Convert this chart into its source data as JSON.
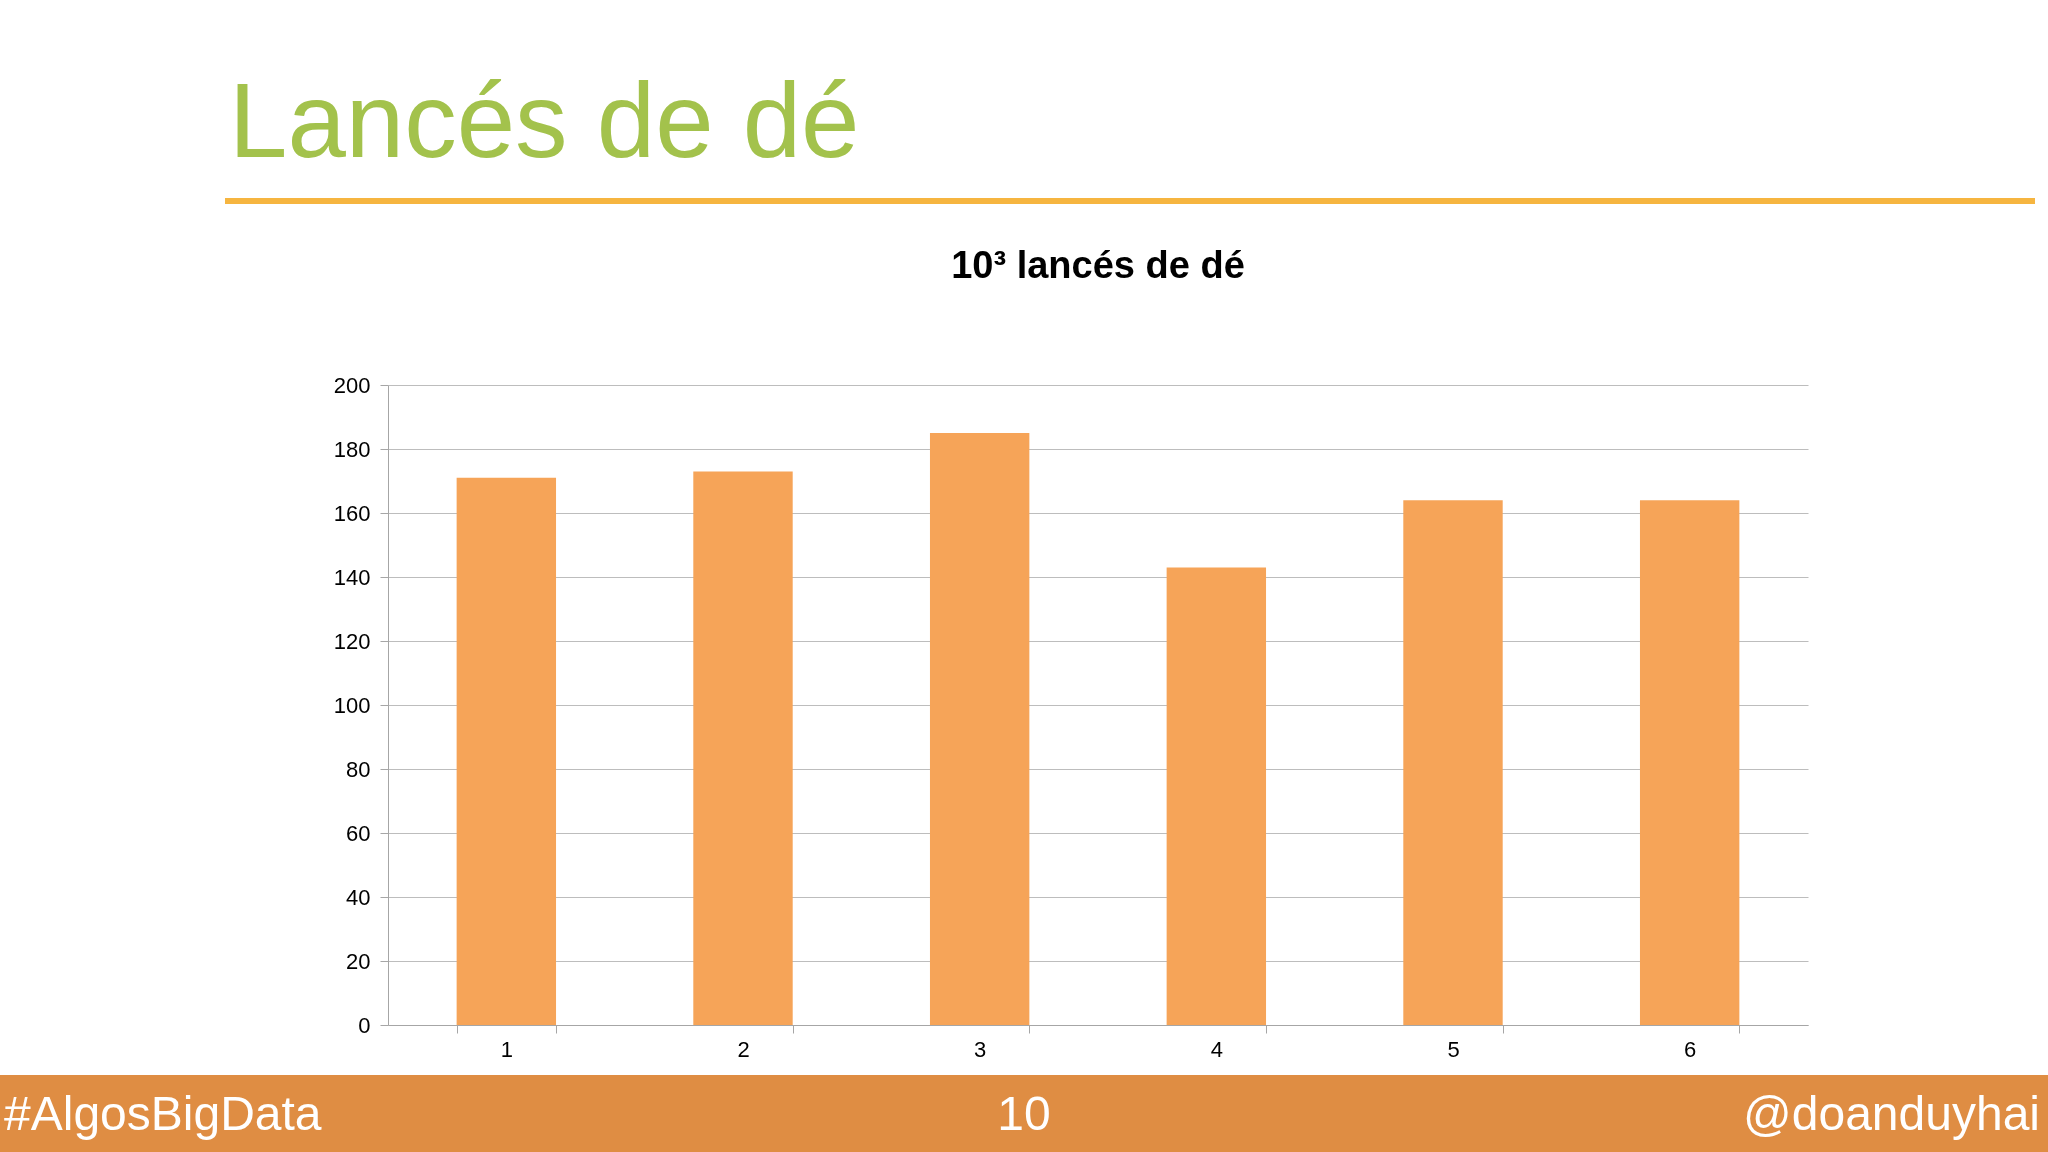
{
  "chart_data": {
    "type": "bar",
    "title": "Lancés de dé",
    "subtitle": "10³ lancés de dé",
    "categories": [
      "1",
      "2",
      "3",
      "4",
      "5",
      "6"
    ],
    "values": [
      171,
      173,
      185,
      143,
      164,
      164
    ],
    "color": "#f6a458",
    "ylim": [
      0,
      200
    ],
    "yticks": [
      0,
      20,
      40,
      60,
      80,
      100,
      120,
      140,
      160,
      180,
      200
    ],
    "grid": "y",
    "annotations": [
      "#AlgosBigData",
      "10",
      "@doanduyhai"
    ]
  }
}
